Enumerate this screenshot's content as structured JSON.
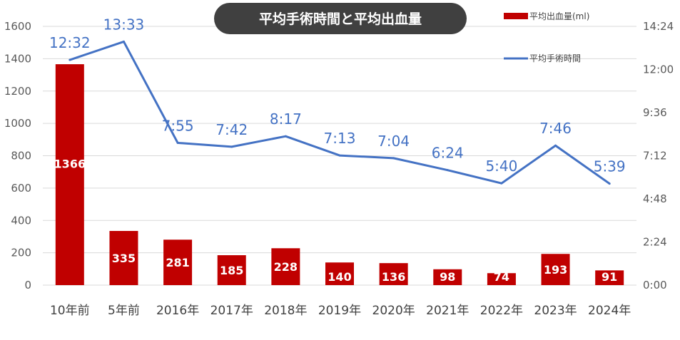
{
  "chart_data": {
    "type": "bar",
    "title": "平均手術時間と平均出血量",
    "categories": [
      "10年前",
      "5年前",
      "2016年",
      "2017年",
      "2018年",
      "2019年",
      "2020年",
      "2021年",
      "2022年",
      "2023年",
      "2024年"
    ],
    "series": [
      {
        "name": "平均出血量(ml)",
        "type": "bar",
        "axis": "left",
        "color": "#c00000",
        "values": [
          1366,
          335,
          281,
          185,
          228,
          140,
          136,
          98,
          74,
          193,
          91
        ],
        "labels": [
          "1366",
          "335",
          "281",
          "185",
          "228",
          "140",
          "136",
          "98",
          "74",
          "193",
          "91"
        ]
      },
      {
        "name": "平均手術時間",
        "type": "line",
        "axis": "right",
        "color": "#4472c4",
        "values": [
          "12:32",
          "13:33",
          "7:55",
          "7:42",
          "8:17",
          "7:13",
          "7:04",
          "6:24",
          "5:40",
          "7:46",
          "5:39"
        ],
        "labels": [
          "12:32",
          "13:33",
          "7:55",
          "7:42",
          "8:17",
          "7:13",
          "7:04",
          "6:24",
          "5:40",
          "7:46",
          "5:39"
        ]
      }
    ],
    "y_left": {
      "ylim": [
        0,
        1600
      ],
      "ticks": [
        "0",
        "200",
        "400",
        "600",
        "800",
        "1000",
        "1200",
        "1400",
        "1600"
      ]
    },
    "y_right": {
      "ylim": [
        "0:00",
        "14:24"
      ],
      "ticks": [
        "0:00",
        "2:24",
        "4:48",
        "7:12",
        "9:36",
        "12:00",
        "14:24"
      ]
    },
    "grid": true,
    "legend_position": "top-right"
  }
}
